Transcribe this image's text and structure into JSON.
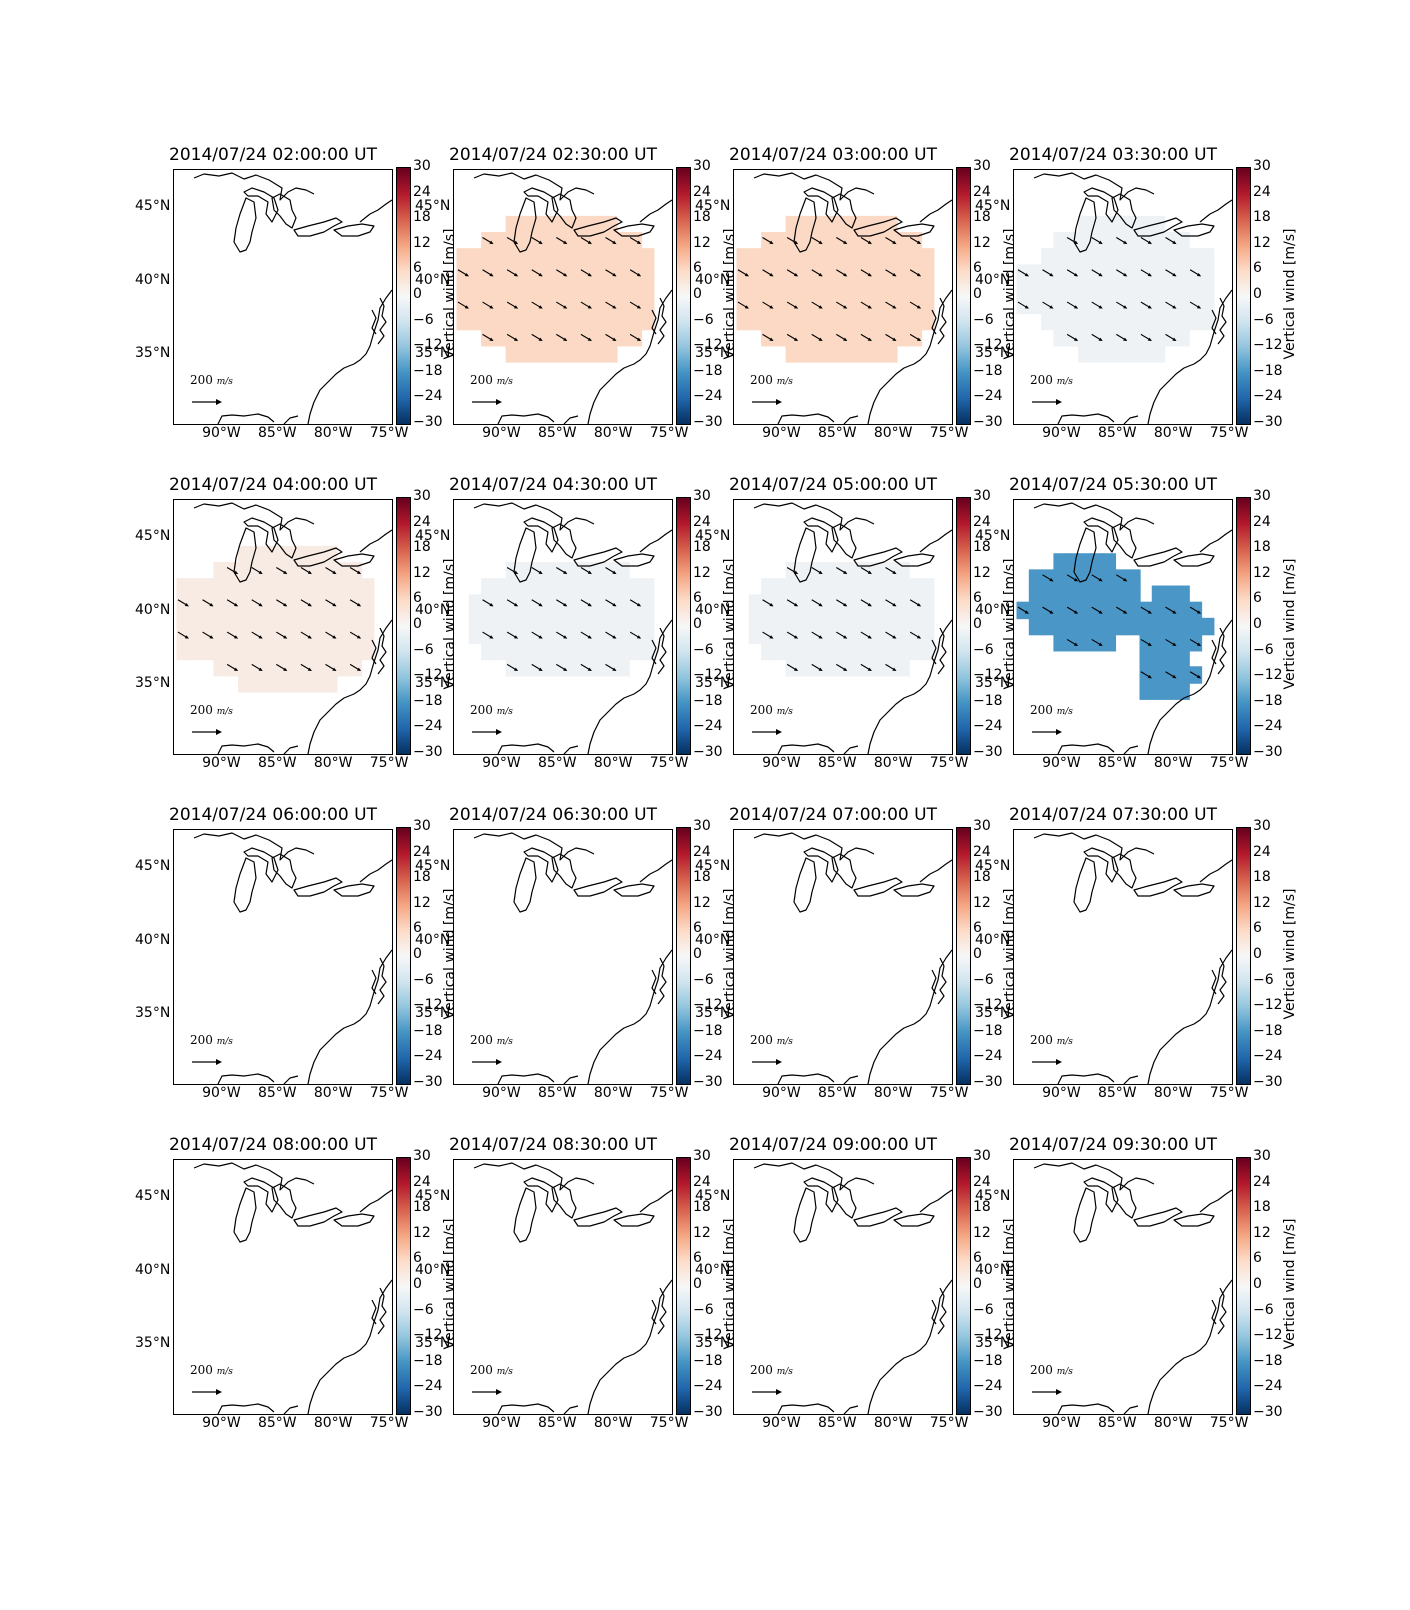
{
  "colors": {
    "positive_small": "#fbd9c4",
    "positive_tiny": "#f8ebe4",
    "negative_tiny": "#eef2f5",
    "negative_mid": "#4a96c6",
    "coast": "#000000",
    "arrow": "#000000"
  },
  "axes": {
    "lat_ticks": [
      "45°N",
      "40°N",
      "35°N"
    ],
    "lon_ticks": [
      "90°W",
      "85°W",
      "80°W",
      "75°W"
    ]
  },
  "colorbar": {
    "ticks": [
      "30",
      "24",
      "18",
      "12",
      "6",
      "0",
      "−6",
      "−12",
      "−18",
      "−24",
      "−30"
    ],
    "label": "Vertical wind [m/s]",
    "range": [
      -30,
      30
    ],
    "colormap": "RdBu_r"
  },
  "quiver_scale": {
    "text": "200",
    "unit": "m/s"
  },
  "panels": [
    {
      "title": "2014/07/24 02:00:00 UT",
      "field": "none",
      "mean_vertical_wind": null
    },
    {
      "title": "2014/07/24 02:30:00 UT",
      "field": "A",
      "mean_vertical_wind": 5
    },
    {
      "title": "2014/07/24 03:00:00 UT",
      "field": "A",
      "mean_vertical_wind": 5
    },
    {
      "title": "2014/07/24 03:30:00 UT",
      "field": "B",
      "mean_vertical_wind": -1
    },
    {
      "title": "2014/07/24 04:00:00 UT",
      "field": "C",
      "mean_vertical_wind": 2
    },
    {
      "title": "2014/07/24 04:30:00 UT",
      "field": "D",
      "mean_vertical_wind": -1
    },
    {
      "title": "2014/07/24 05:00:00 UT",
      "field": "E",
      "mean_vertical_wind": -1
    },
    {
      "title": "2014/07/24 05:30:00 UT",
      "field": "F",
      "mean_vertical_wind": -13
    },
    {
      "title": "2014/07/24 06:00:00 UT",
      "field": "none",
      "mean_vertical_wind": null
    },
    {
      "title": "2014/07/24 06:30:00 UT",
      "field": "none",
      "mean_vertical_wind": null
    },
    {
      "title": "2014/07/24 07:00:00 UT",
      "field": "none",
      "mean_vertical_wind": null
    },
    {
      "title": "2014/07/24 07:30:00 UT",
      "field": "none",
      "mean_vertical_wind": null
    },
    {
      "title": "2014/07/24 08:00:00 UT",
      "field": "none",
      "mean_vertical_wind": null
    },
    {
      "title": "2014/07/24 08:30:00 UT",
      "field": "none",
      "mean_vertical_wind": null
    },
    {
      "title": "2014/07/24 09:00:00 UT",
      "field": "none",
      "mean_vertical_wind": null
    },
    {
      "title": "2014/07/24 09:30:00 UT",
      "field": "none",
      "mean_vertical_wind": null
    }
  ]
}
